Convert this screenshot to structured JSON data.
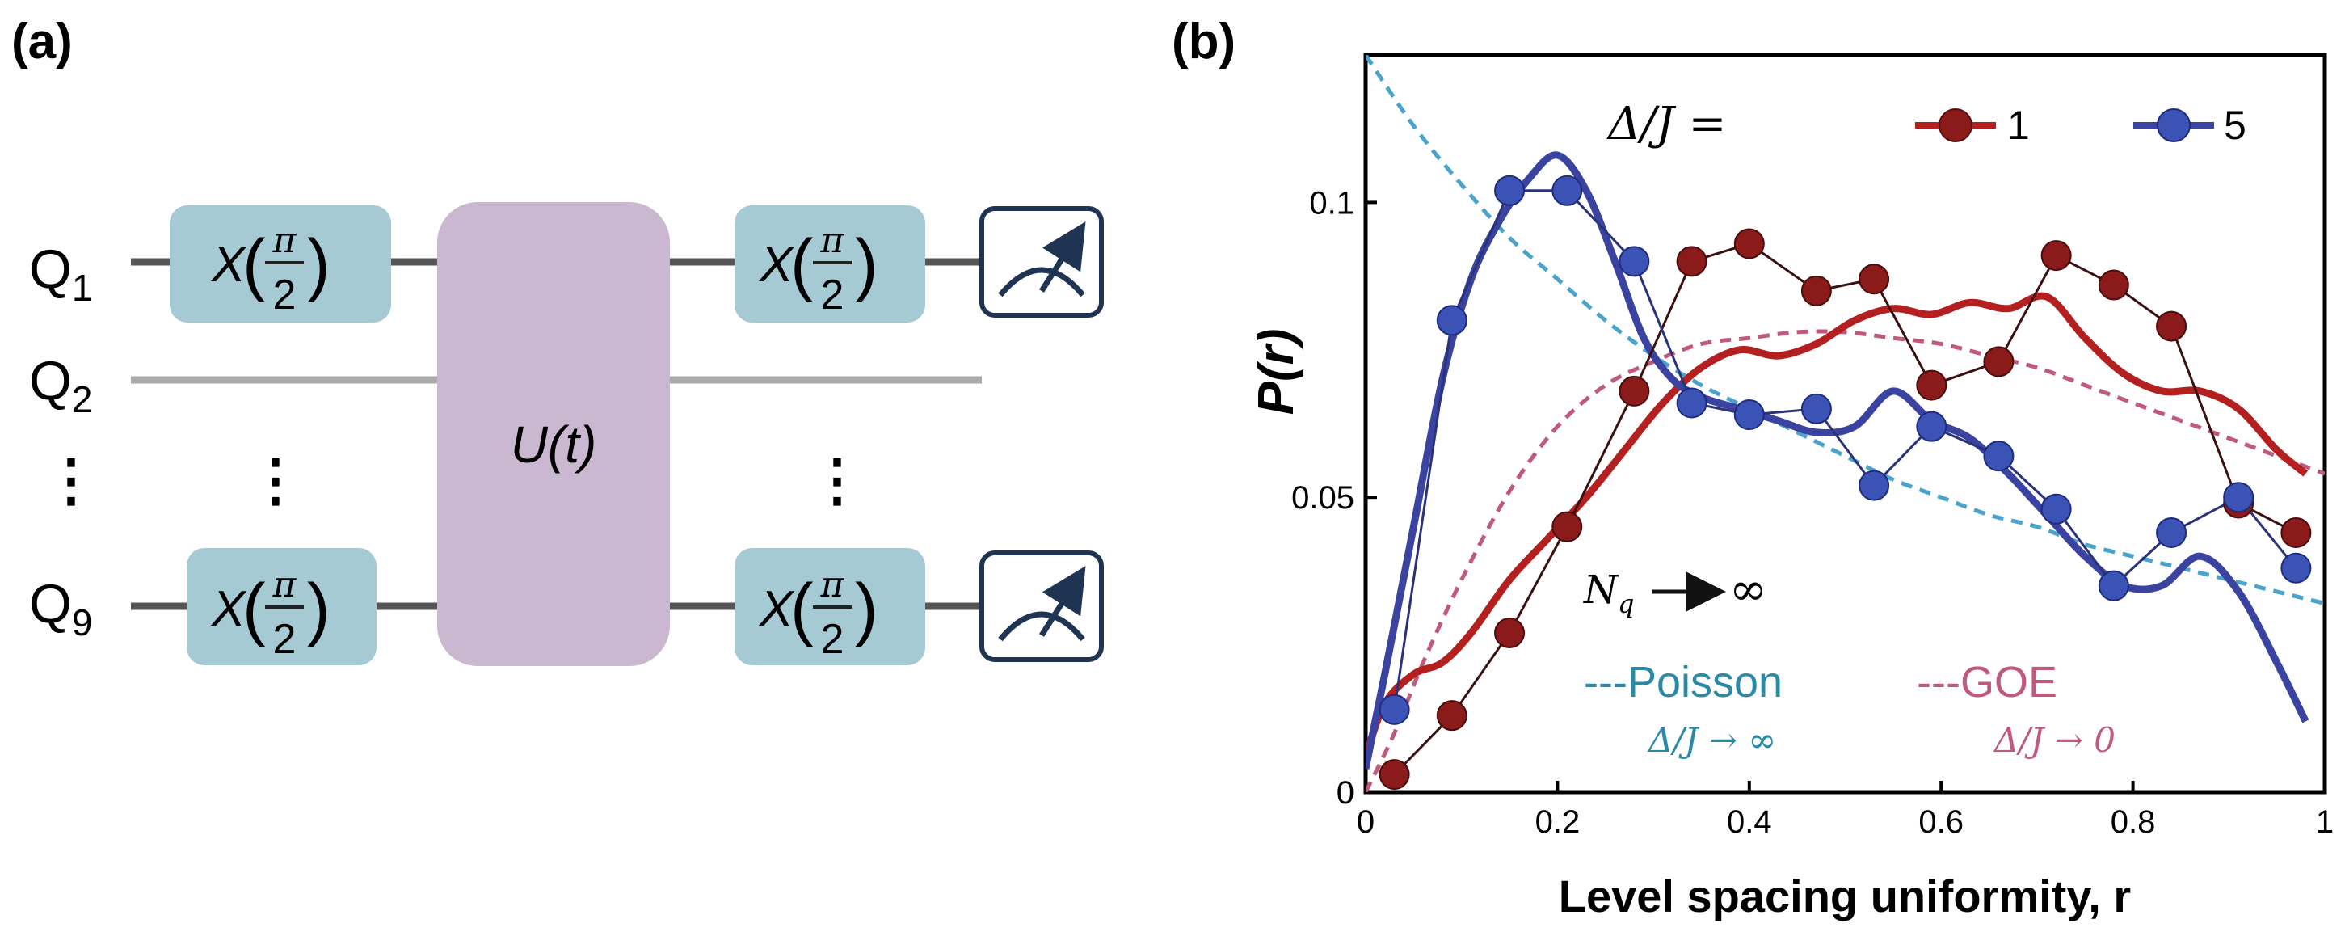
{
  "panel_a": {
    "label": "(a)",
    "qubits": [
      "Q",
      "Q",
      "Q"
    ],
    "qubit_subscripts": [
      "1",
      "2",
      "9"
    ],
    "dots": "⋮",
    "gate_x": "X",
    "gate_x_num": "π",
    "gate_x_den": "2",
    "unitary": "U(t)",
    "meter_icon": "meter-icon"
  },
  "panel_b": {
    "label": "(b)"
  },
  "colors": {
    "gate": "#a6cad3",
    "unitary": "#c9b8cf",
    "wire": "#555555",
    "wire_light": "#aaaaaa",
    "meter": "#1f3352",
    "red": "#b41f20",
    "red_marker": "#8b1a1a",
    "blue": "#3a43a0",
    "blue_marker": "#3b53b5",
    "poisson": "#4aa3cc",
    "goe": "#c05a7a"
  },
  "chart_data": {
    "type": "line",
    "xlabel": "Level spacing uniformity, r",
    "ylabel": "P(r)",
    "xlim": [
      0,
      1
    ],
    "ylim": [
      0,
      0.125
    ],
    "xticks": [
      0,
      0.2,
      0.4,
      0.6,
      0.8,
      1
    ],
    "xtick_labels": [
      "0",
      "0.2",
      "0.4",
      "0.6",
      "0.8",
      "1"
    ],
    "yticks": [
      0,
      0.05,
      0.1
    ],
    "ytick_labels": [
      "0",
      "0.05",
      "0.1"
    ],
    "legend": {
      "title": "Δ/J =",
      "entries": [
        "1",
        "5"
      ]
    },
    "annotations": {
      "nq": "N",
      "nq_sub": "q",
      "nq_arrow": "→ ∞",
      "poisson_label": "---Poisson",
      "poisson_limit": "Δ/J → ∞",
      "goe_label": "---GOE",
      "goe_limit": "Δ/J → 0"
    },
    "series": [
      {
        "name": "Δ/J = 1 (data)",
        "kind": "markers",
        "x": [
          0.03,
          0.09,
          0.15,
          0.21,
          0.28,
          0.34,
          0.4,
          0.47,
          0.53,
          0.59,
          0.66,
          0.72,
          0.78,
          0.84,
          0.91,
          0.97
        ],
        "y": [
          0.003,
          0.013,
          0.027,
          0.045,
          0.068,
          0.09,
          0.093,
          0.085,
          0.087,
          0.069,
          0.073,
          0.091,
          0.086,
          0.079,
          0.049,
          0.044
        ]
      },
      {
        "name": "Δ/J = 5 (data)",
        "kind": "markers",
        "x": [
          0.03,
          0.09,
          0.15,
          0.21,
          0.28,
          0.34,
          0.4,
          0.47,
          0.53,
          0.59,
          0.66,
          0.72,
          0.78,
          0.84,
          0.91,
          0.97
        ],
        "y": [
          0.014,
          0.08,
          0.102,
          0.102,
          0.09,
          0.066,
          0.064,
          0.065,
          0.052,
          0.062,
          0.057,
          0.048,
          0.035,
          0.044,
          0.05,
          0.038
        ]
      },
      {
        "name": "Δ/J = 1 (N_q → ∞)",
        "kind": "line",
        "x": [
          0,
          0.02,
          0.05,
          0.08,
          0.11,
          0.15,
          0.19,
          0.23,
          0.27,
          0.31,
          0.35,
          0.39,
          0.43,
          0.47,
          0.51,
          0.55,
          0.59,
          0.63,
          0.67,
          0.71,
          0.75,
          0.79,
          0.83,
          0.87,
          0.91,
          0.95,
          0.98
        ],
        "y": [
          0.006,
          0.015,
          0.02,
          0.022,
          0.027,
          0.036,
          0.043,
          0.05,
          0.058,
          0.066,
          0.072,
          0.075,
          0.074,
          0.076,
          0.08,
          0.082,
          0.081,
          0.083,
          0.082,
          0.084,
          0.077,
          0.071,
          0.068,
          0.068,
          0.065,
          0.058,
          0.054
        ]
      },
      {
        "name": "Δ/J = 5 (N_q → ∞)",
        "kind": "line",
        "x": [
          0,
          0.02,
          0.05,
          0.08,
          0.11,
          0.14,
          0.17,
          0.2,
          0.23,
          0.26,
          0.29,
          0.32,
          0.35,
          0.39,
          0.43,
          0.47,
          0.51,
          0.55,
          0.59,
          0.63,
          0.67,
          0.71,
          0.75,
          0.79,
          0.83,
          0.87,
          0.91,
          0.95,
          0.98
        ],
        "y": [
          0.004,
          0.02,
          0.045,
          0.07,
          0.087,
          0.097,
          0.104,
          0.108,
          0.102,
          0.09,
          0.077,
          0.07,
          0.067,
          0.065,
          0.063,
          0.061,
          0.062,
          0.068,
          0.063,
          0.06,
          0.054,
          0.047,
          0.04,
          0.035,
          0.035,
          0.04,
          0.034,
          0.022,
          0.012
        ]
      },
      {
        "name": "Poisson",
        "kind": "dashed",
        "x": [
          0,
          0.05,
          0.1,
          0.15,
          0.2,
          0.25,
          0.3,
          0.35,
          0.4,
          0.45,
          0.5,
          0.55,
          0.6,
          0.65,
          0.7,
          0.75,
          0.8,
          0.85,
          0.9,
          0.95,
          1.0
        ],
        "y": [
          0.125,
          0.113,
          0.103,
          0.094,
          0.087,
          0.08,
          0.074,
          0.069,
          0.065,
          0.061,
          0.057,
          0.053,
          0.05,
          0.047,
          0.045,
          0.042,
          0.04,
          0.038,
          0.036,
          0.034,
          0.032
        ]
      },
      {
        "name": "GOE",
        "kind": "dashed",
        "x": [
          0,
          0.03,
          0.06,
          0.1,
          0.15,
          0.2,
          0.25,
          0.3,
          0.35,
          0.4,
          0.45,
          0.5,
          0.55,
          0.6,
          0.65,
          0.7,
          0.75,
          0.8,
          0.85,
          0.9,
          0.95,
          1.0
        ],
        "y": [
          0.0,
          0.01,
          0.022,
          0.036,
          0.051,
          0.062,
          0.069,
          0.073,
          0.076,
          0.077,
          0.078,
          0.078,
          0.077,
          0.076,
          0.074,
          0.072,
          0.069,
          0.066,
          0.063,
          0.06,
          0.057,
          0.054
        ]
      }
    ]
  }
}
